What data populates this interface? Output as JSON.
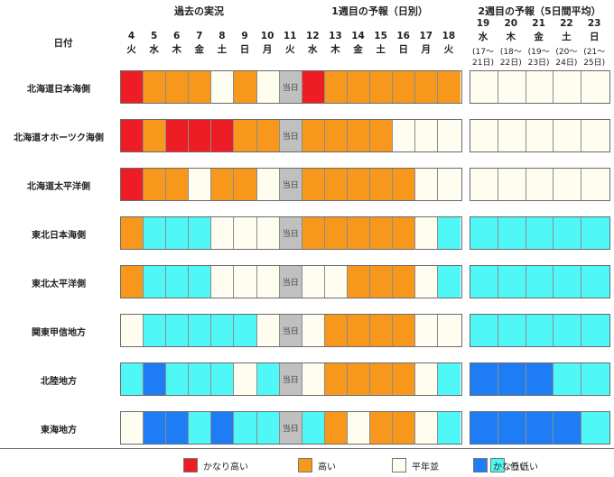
{
  "header": {
    "row_label": "日付",
    "past_label": "過去の実況",
    "week1_label": "1週目の予報（日別）",
    "week2_label": "2週目の予報（5日間平均）",
    "today_label": "当日"
  },
  "days": [
    {
      "num": "4",
      "dow": "火"
    },
    {
      "num": "5",
      "dow": "水"
    },
    {
      "num": "6",
      "dow": "木"
    },
    {
      "num": "7",
      "dow": "金"
    },
    {
      "num": "8",
      "dow": "土"
    },
    {
      "num": "9",
      "dow": "日"
    },
    {
      "num": "10",
      "dow": "月"
    },
    {
      "num": "11",
      "dow": "火"
    },
    {
      "num": "12",
      "dow": "水"
    },
    {
      "num": "13",
      "dow": "木"
    },
    {
      "num": "14",
      "dow": "金"
    },
    {
      "num": "15",
      "dow": "土"
    },
    {
      "num": "16",
      "dow": "日"
    },
    {
      "num": "17",
      "dow": "月"
    },
    {
      "num": "18",
      "dow": "火"
    }
  ],
  "week2_days": [
    {
      "num": "19",
      "dow": "水",
      "range": "(17〜",
      "range2": "21日)"
    },
    {
      "num": "20",
      "dow": "木",
      "range": "(18〜",
      "range2": "22日)"
    },
    {
      "num": "21",
      "dow": "金",
      "range": "(19〜",
      "range2": "23日)"
    },
    {
      "num": "22",
      "dow": "土",
      "range": "(20〜",
      "range2": "24日)"
    },
    {
      "num": "23",
      "dow": "日",
      "range": "(21〜",
      "range2": "25日)"
    }
  ],
  "colors": {
    "vhigh": "#ee1c25",
    "high": "#f7981d",
    "normal": "#fffdf0",
    "low": "#4ff7f7",
    "vlow": "#1e7df5",
    "today": "#c0c0c0"
  },
  "chart_data": {
    "type": "heatmap",
    "categories": [
      "4",
      "5",
      "6",
      "7",
      "8",
      "9",
      "10",
      "11",
      "12",
      "13",
      "14",
      "15",
      "16",
      "17",
      "18"
    ],
    "week2_categories": [
      "19",
      "20",
      "21",
      "22",
      "23"
    ],
    "regions": [
      {
        "name": "北海道日本海側",
        "daily": [
          "vhigh",
          "high",
          "high",
          "high",
          "normal",
          "high",
          "normal",
          "today",
          "vhigh",
          "high",
          "high",
          "high",
          "high",
          "high",
          "high"
        ],
        "week2": [
          "normal",
          "normal",
          "normal",
          "normal",
          "normal"
        ]
      },
      {
        "name": "北海道オホーツク海側",
        "daily": [
          "vhigh",
          "high",
          "vhigh",
          "vhigh",
          "vhigh",
          "high",
          "high",
          "today",
          "high",
          "high",
          "high",
          "high",
          "normal",
          "normal",
          "normal"
        ],
        "week2": [
          "normal",
          "normal",
          "normal",
          "normal",
          "normal"
        ]
      },
      {
        "name": "北海道太平洋側",
        "daily": [
          "vhigh",
          "high",
          "high",
          "normal",
          "high",
          "high",
          "normal",
          "today",
          "high",
          "high",
          "high",
          "high",
          "high",
          "normal",
          "normal"
        ],
        "week2": [
          "normal",
          "normal",
          "normal",
          "normal",
          "normal"
        ]
      },
      {
        "name": "東北日本海側",
        "daily": [
          "high",
          "low",
          "low",
          "low",
          "normal",
          "normal",
          "normal",
          "today",
          "high",
          "high",
          "high",
          "high",
          "high",
          "normal",
          "low"
        ],
        "week2": [
          "low",
          "low",
          "low",
          "low",
          "low"
        ]
      },
      {
        "name": "東北太平洋側",
        "daily": [
          "high",
          "low",
          "low",
          "low",
          "normal",
          "normal",
          "normal",
          "today",
          "normal",
          "normal",
          "high",
          "high",
          "high",
          "normal",
          "low"
        ],
        "week2": [
          "low",
          "low",
          "low",
          "low",
          "low"
        ]
      },
      {
        "name": "関東甲信地方",
        "daily": [
          "normal",
          "low",
          "low",
          "low",
          "low",
          "low",
          "normal",
          "today",
          "normal",
          "high",
          "high",
          "high",
          "high",
          "normal",
          "normal"
        ],
        "week2": [
          "low",
          "low",
          "low",
          "low",
          "low"
        ]
      },
      {
        "name": "北陸地方",
        "daily": [
          "low",
          "vlow",
          "low",
          "low",
          "low",
          "normal",
          "low",
          "today",
          "normal",
          "high",
          "high",
          "high",
          "high",
          "normal",
          "low"
        ],
        "week2": [
          "vlow",
          "vlow",
          "vlow",
          "low",
          "low"
        ]
      },
      {
        "name": "東海地方",
        "daily": [
          "normal",
          "vlow",
          "vlow",
          "low",
          "vlow",
          "low",
          "low",
          "today",
          "low",
          "high",
          "normal",
          "high",
          "high",
          "normal",
          "low"
        ],
        "week2": [
          "vlow",
          "vlow",
          "vlow",
          "vlow",
          "low"
        ]
      }
    ]
  },
  "legend": [
    {
      "key": "vhigh",
      "label": "かなり高い"
    },
    {
      "key": "high",
      "label": "高い"
    },
    {
      "key": "normal",
      "label": "平年並"
    },
    {
      "key": "low",
      "label": "低い"
    },
    {
      "key": "vlow",
      "label": "かなり低い"
    }
  ]
}
